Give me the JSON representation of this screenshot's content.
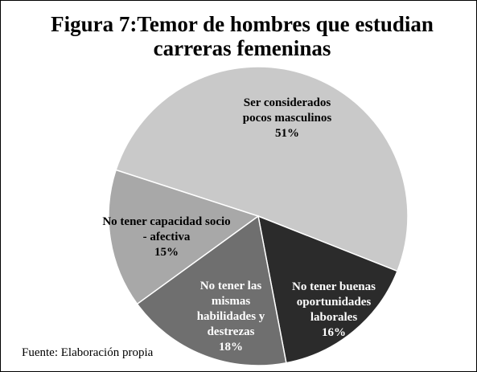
{
  "chart_data": {
    "type": "pie",
    "title": "Figura 7:Temor de hombres que estudian carreras femeninas",
    "categories": [
      "Ser considerados pocos masculinos",
      "No tener buenas oportunidades laborales",
      "No tener las mismas habilidades y destrezas",
      "No tener capacidad socio - afectiva"
    ],
    "values": [
      51,
      16,
      18,
      15
    ],
    "value_labels": [
      "51%",
      "16%",
      "18%",
      "15%"
    ],
    "colors": [
      "#c9c9c9",
      "#2b2b2b",
      "#6f6f6f",
      "#a8a8a8"
    ],
    "source": "Fuente: Elaboración propia"
  }
}
